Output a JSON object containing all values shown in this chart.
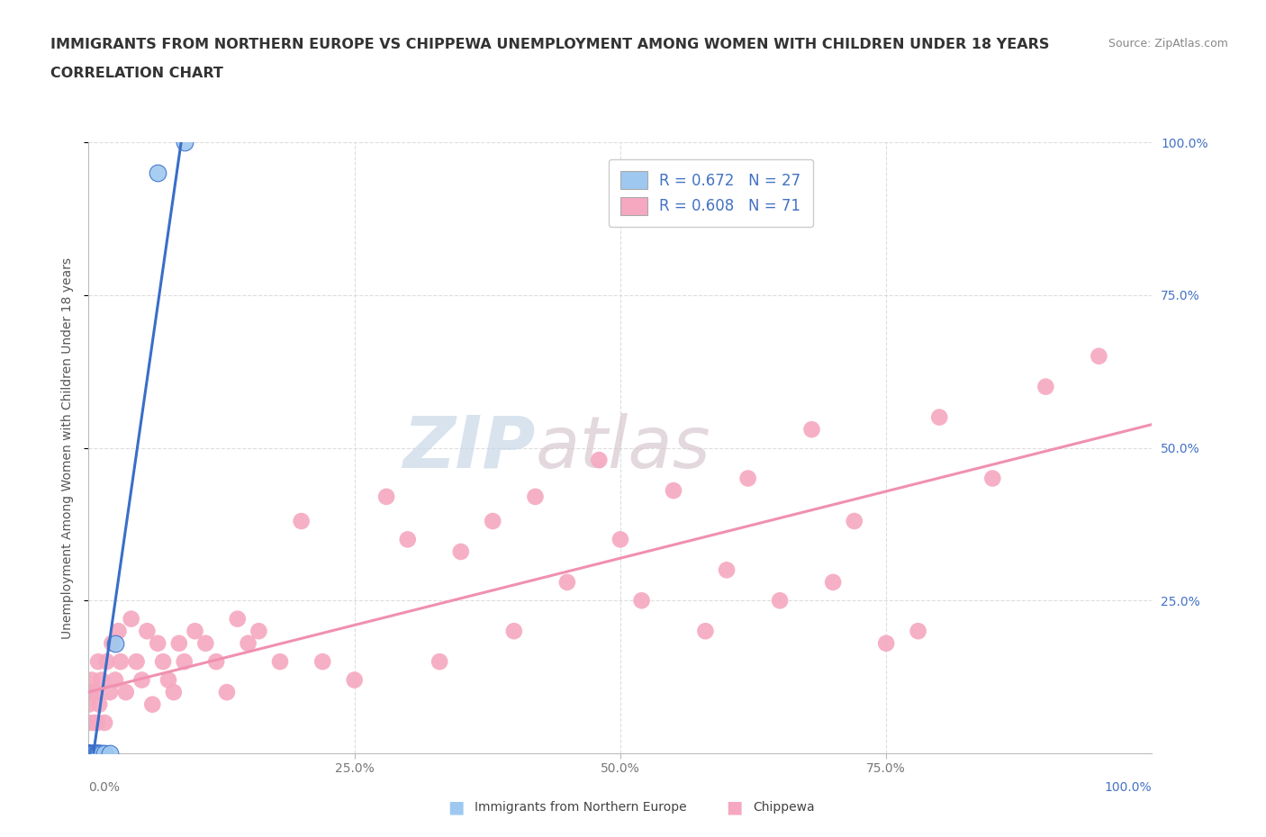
{
  "title_line1": "IMMIGRANTS FROM NORTHERN EUROPE VS CHIPPEWA UNEMPLOYMENT AMONG WOMEN WITH CHILDREN UNDER 18 YEARS",
  "title_line2": "CORRELATION CHART",
  "source_text": "Source: ZipAtlas.com",
  "ylabel": "Unemployment Among Women with Children Under 18 years",
  "watermark_part1": "ZIP",
  "watermark_part2": "atlas",
  "blue_R": 0.672,
  "blue_N": 27,
  "pink_R": 0.608,
  "pink_N": 71,
  "blue_color": "#9EC8F0",
  "pink_color": "#F5A8C0",
  "blue_line_color": "#3A6EC8",
  "pink_line_color": "#F090B0",
  "blue_x": [
    0.0,
    0.0,
    0.0,
    0.0,
    0.0,
    0.0,
    0.0,
    0.0,
    0.0,
    0.002,
    0.002,
    0.003,
    0.004,
    0.005,
    0.005,
    0.006,
    0.007,
    0.008,
    0.009,
    0.01,
    0.01,
    0.012,
    0.015,
    0.02,
    0.025,
    0.065,
    0.09
  ],
  "blue_y": [
    0.0,
    0.0,
    0.0,
    0.0,
    0.0,
    0.0,
    0.0,
    0.0,
    0.0,
    0.0,
    0.0,
    0.0,
    0.0,
    0.0,
    0.0,
    0.0,
    0.0,
    0.0,
    0.0,
    0.0,
    0.0,
    0.0,
    0.0,
    0.0,
    0.18,
    0.95,
    1.0
  ],
  "pink_x": [
    0.0,
    0.0,
    0.0,
    0.0,
    0.0,
    0.0,
    0.002,
    0.003,
    0.004,
    0.005,
    0.006,
    0.007,
    0.008,
    0.009,
    0.01,
    0.012,
    0.015,
    0.017,
    0.02,
    0.022,
    0.025,
    0.028,
    0.03,
    0.035,
    0.04,
    0.045,
    0.05,
    0.055,
    0.06,
    0.065,
    0.07,
    0.075,
    0.08,
    0.085,
    0.09,
    0.1,
    0.11,
    0.12,
    0.13,
    0.14,
    0.15,
    0.16,
    0.18,
    0.2,
    0.22,
    0.25,
    0.28,
    0.3,
    0.33,
    0.35,
    0.38,
    0.4,
    0.42,
    0.45,
    0.48,
    0.5,
    0.52,
    0.55,
    0.58,
    0.6,
    0.62,
    0.65,
    0.68,
    0.7,
    0.72,
    0.75,
    0.78,
    0.8,
    0.85,
    0.9,
    0.95
  ],
  "pink_y": [
    0.0,
    0.0,
    0.0,
    0.0,
    0.05,
    0.08,
    0.1,
    0.12,
    0.0,
    0.05,
    0.1,
    0.0,
    0.05,
    0.15,
    0.08,
    0.12,
    0.05,
    0.15,
    0.1,
    0.18,
    0.12,
    0.2,
    0.15,
    0.1,
    0.22,
    0.15,
    0.12,
    0.2,
    0.08,
    0.18,
    0.15,
    0.12,
    0.1,
    0.18,
    0.15,
    0.2,
    0.18,
    0.15,
    0.1,
    0.22,
    0.18,
    0.2,
    0.15,
    0.38,
    0.15,
    0.12,
    0.42,
    0.35,
    0.15,
    0.33,
    0.38,
    0.2,
    0.42,
    0.28,
    0.48,
    0.35,
    0.25,
    0.43,
    0.2,
    0.3,
    0.45,
    0.25,
    0.53,
    0.28,
    0.38,
    0.18,
    0.2,
    0.55,
    0.45,
    0.6,
    0.65
  ],
  "xlim": [
    0.0,
    1.0
  ],
  "ylim": [
    0.0,
    1.0
  ],
  "xticks": [
    0.0,
    0.25,
    0.5,
    0.75,
    1.0
  ],
  "yticks": [
    0.25,
    0.5,
    0.75,
    1.0
  ],
  "right_ytick_labels": [
    "25.0%",
    "50.0%",
    "75.0%",
    "100.0%"
  ],
  "background_color": "#FFFFFF",
  "grid_color": "#DDDDDD",
  "title_fontsize": 11.5,
  "axis_tick_color": "#4472C4",
  "axis_label_color": "#555555"
}
